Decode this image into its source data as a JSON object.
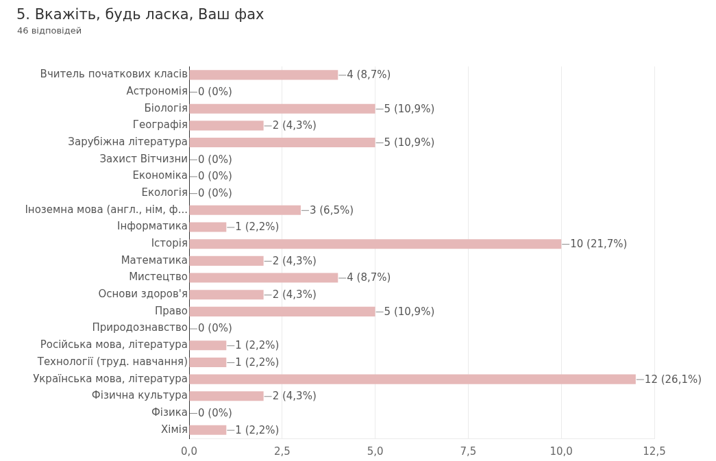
{
  "chart_data": {
    "type": "bar",
    "orientation": "horizontal",
    "title": "5. Вкажіть, будь ласка, Ваш фах",
    "subtitle": "46 відповідей",
    "categories": [
      "Вчитель початкових класів",
      "Астрономія",
      "Біологія",
      "Географія",
      "Зарубіжна література",
      "Захист Вітчизни",
      "Економіка",
      "Екологія",
      "Іноземна мова (англ., нім, ф...",
      "Інформатика",
      "Історія",
      "Математика",
      "Мистецтво",
      "Основи здоров'я",
      "Право",
      "Природознавство",
      "Російська мова, література",
      "Технології (труд. навчання)",
      "Українська мова, література",
      "Фізична культура",
      "Фізика",
      "Хімія"
    ],
    "values": [
      4,
      0,
      5,
      2,
      5,
      0,
      0,
      0,
      3,
      1,
      10,
      2,
      4,
      2,
      5,
      0,
      1,
      1,
      12,
      2,
      0,
      1
    ],
    "value_labels": [
      "4 (8,7%)",
      "0 (0%)",
      "5 (10,9%)",
      "2 (4,3%)",
      "5 (10,9%)",
      "0 (0%)",
      "0 (0%)",
      "0 (0%)",
      "3 (6,5%)",
      "1 (2,2%)",
      "10 (21,7%)",
      "2 (4,3%)",
      "4 (8,7%)",
      "2 (4,3%)",
      "5 (10,9%)",
      "0 (0%)",
      "1 (2,2%)",
      "1 (2,2%)",
      "12 (26,1%)",
      "2 (4,3%)",
      "0 (0%)",
      "1 (2,2%)"
    ],
    "color": "#e6b8b8",
    "xlim": [
      0,
      12.5
    ],
    "xticks": [
      {
        "value": 0,
        "label": "0,0"
      },
      {
        "value": 2.5,
        "label": "2,5"
      },
      {
        "value": 5,
        "label": "5,0"
      },
      {
        "value": 7.5,
        "label": "7,5"
      },
      {
        "value": 10,
        "label": "10,0"
      },
      {
        "value": 12.5,
        "label": "12,5"
      }
    ],
    "grid": "x"
  }
}
